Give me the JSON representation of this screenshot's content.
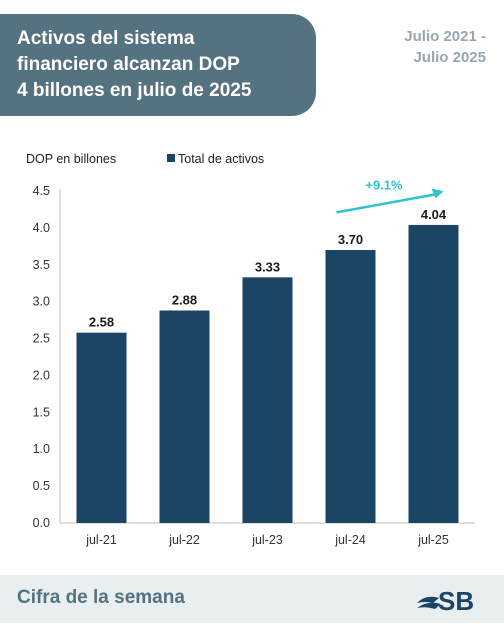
{
  "header": {
    "title_lines": [
      "Activos del sistema",
      "financiero alcanzan DOP",
      "4 billones en julio de 2025"
    ],
    "period_lines": [
      "Julio 2021 -",
      "Julio 2025"
    ]
  },
  "footer": {
    "label": "Cifra de la semana",
    "logo_text": "SB"
  },
  "colors": {
    "header_bg": "#557280",
    "bar": "#1b4565",
    "arrow": "#2ec4c9",
    "footer_bg": "#e9eef1"
  },
  "chart_data": {
    "type": "bar",
    "categories": [
      "jul-21",
      "jul-22",
      "jul-23",
      "jul-24",
      "jul-25"
    ],
    "series": [
      {
        "name": "Total de activos",
        "values": [
          2.58,
          2.88,
          3.33,
          3.7,
          4.04
        ]
      }
    ],
    "data_labels": [
      "2.58",
      "2.88",
      "3.33",
      "3.70",
      "4.04"
    ],
    "unit_label": "DOP en billones",
    "ylim": [
      0,
      4.5
    ],
    "yticks": [
      "0.0",
      "0.5",
      "1.0",
      "1.5",
      "2.0",
      "2.5",
      "3.0",
      "3.5",
      "4.0",
      "4.5"
    ],
    "grid": false,
    "legend": "top",
    "annotation": {
      "text": "+9.1%",
      "from": "jul-24",
      "to": "jul-25"
    }
  }
}
